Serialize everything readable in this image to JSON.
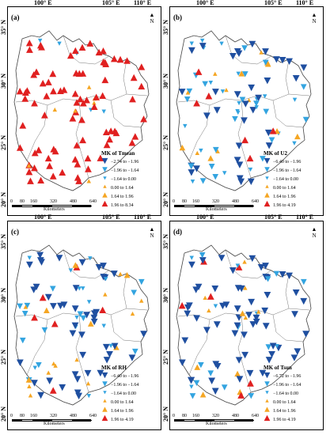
{
  "x_ticks": [
    "100° E",
    "105° E",
    "110° E"
  ],
  "y_ticks": [
    "35° N",
    "30° N",
    "25° N",
    "20° N"
  ],
  "north_label": "N",
  "scale": {
    "labels": [
      "0",
      "80",
      "160",
      "320",
      "480",
      "640"
    ],
    "unit": "Kilometers"
  },
  "colors": {
    "dark_blue": "#1f4fa0",
    "light_blue": "#33a4e0",
    "orange": "#f5a623",
    "red": "#e02020"
  },
  "panels": [
    {
      "label": "(a)",
      "legend_title": "MK of Tmean",
      "classes": [
        "−2.74 to −1.96",
        "−1.96 to −1.64",
        "−1.64 to 0.00",
        "0.00 to 1.64",
        "1.64 to 1.96",
        "1.96 to 8.34"
      ]
    },
    {
      "label": "(b)",
      "legend_title": "MK of U2",
      "classes": [
        "−6.40 to −1.96",
        "−1.96 to −1.64",
        "−1.64 to 0.00",
        "0.00 to 1.64",
        "1.64 to 1.96",
        "1.96 to 4.19"
      ]
    },
    {
      "label": "(c)",
      "legend_title": "MK of RH",
      "classes": [
        "−6.40 to −1.96",
        "−1.96 to −1.64",
        "−1.64 to 0.00",
        "0.00 to 1.64",
        "1.64 to 1.96",
        "1.96 to 4.19"
      ]
    },
    {
      "label": "(d)",
      "legend_title": "MK of Tsun",
      "classes": [
        "−6.72 to −1.96",
        "−1.96 to −1.64",
        "−1.64 to 0.00",
        "0.00 to 1.64",
        "1.64 to 1.96",
        "1.96 to 4.19"
      ]
    }
  ]
}
